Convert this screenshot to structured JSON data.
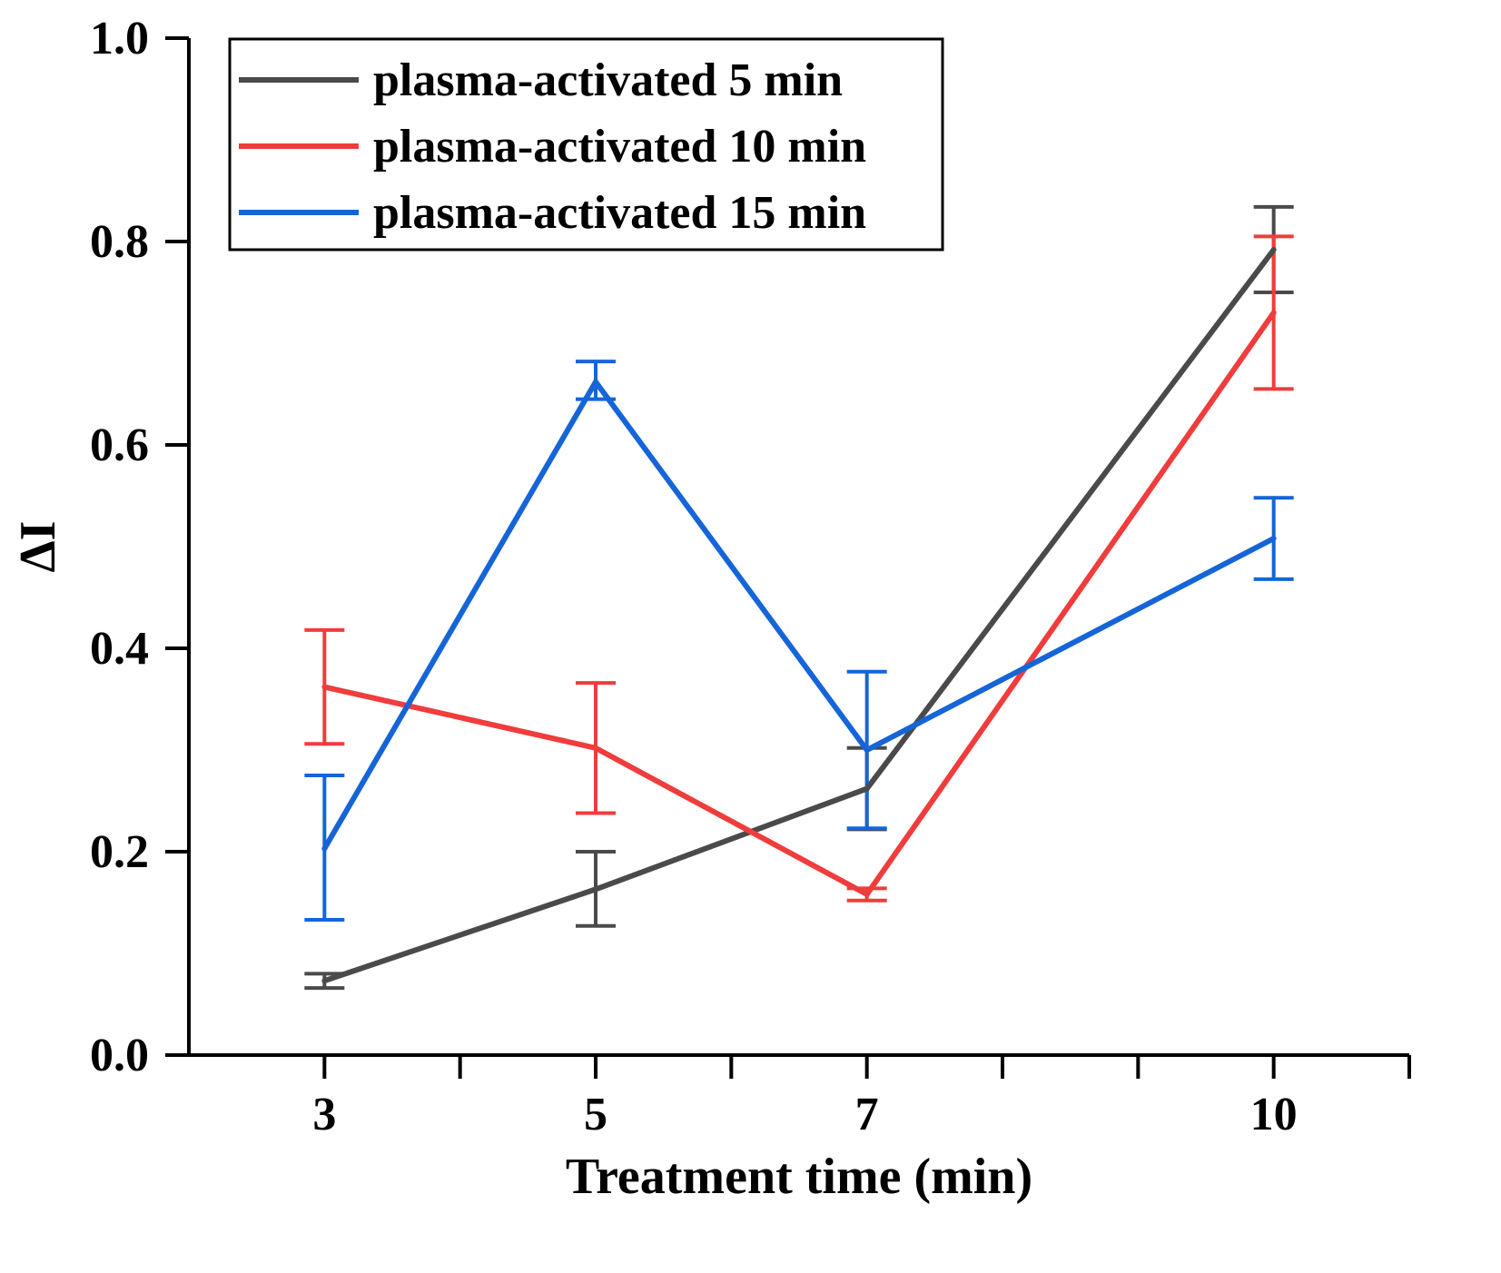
{
  "chart_data": {
    "type": "line",
    "title": "",
    "xlabel": "Treatment time (min)",
    "ylabel": "ΔI",
    "xlim": [
      2,
      11
    ],
    "ylim": [
      0.0,
      1.0
    ],
    "x_ticks": [
      3,
      5,
      7,
      10
    ],
    "x_tick_labels": [
      "3",
      "5",
      "7",
      "10"
    ],
    "x_minor_ticks": [
      4,
      6,
      8,
      9,
      11
    ],
    "y_ticks": [
      0.0,
      0.2,
      0.4,
      0.6,
      0.8,
      1.0
    ],
    "y_tick_labels": [
      "0.0",
      "0.2",
      "0.4",
      "0.6",
      "0.8",
      "1.0"
    ],
    "grid": false,
    "legend_position": "top-left",
    "x": [
      3,
      5,
      7,
      10
    ],
    "series": [
      {
        "name": "plasma-activated 5 min",
        "color": "#4a4a4a",
        "values": [
          0.073,
          0.163,
          0.262,
          0.792
        ],
        "error_low": [
          0.066,
          0.127,
          0.222,
          0.75
        ],
        "error_high": [
          0.08,
          0.2,
          0.302,
          0.834
        ]
      },
      {
        "name": "plasma-activated 10 min",
        "color": "#f03c3c",
        "values": [
          0.362,
          0.302,
          0.158,
          0.73
        ],
        "error_low": [
          0.306,
          0.238,
          0.152,
          0.655
        ],
        "error_high": [
          0.418,
          0.366,
          0.164,
          0.805
        ]
      },
      {
        "name": "plasma-activated 15 min",
        "color": "#1565d8",
        "values": [
          0.203,
          0.662,
          0.3,
          0.508
        ],
        "error_low": [
          0.133,
          0.645,
          0.223,
          0.468
        ],
        "error_high": [
          0.275,
          0.682,
          0.377,
          0.548
        ]
      }
    ]
  }
}
